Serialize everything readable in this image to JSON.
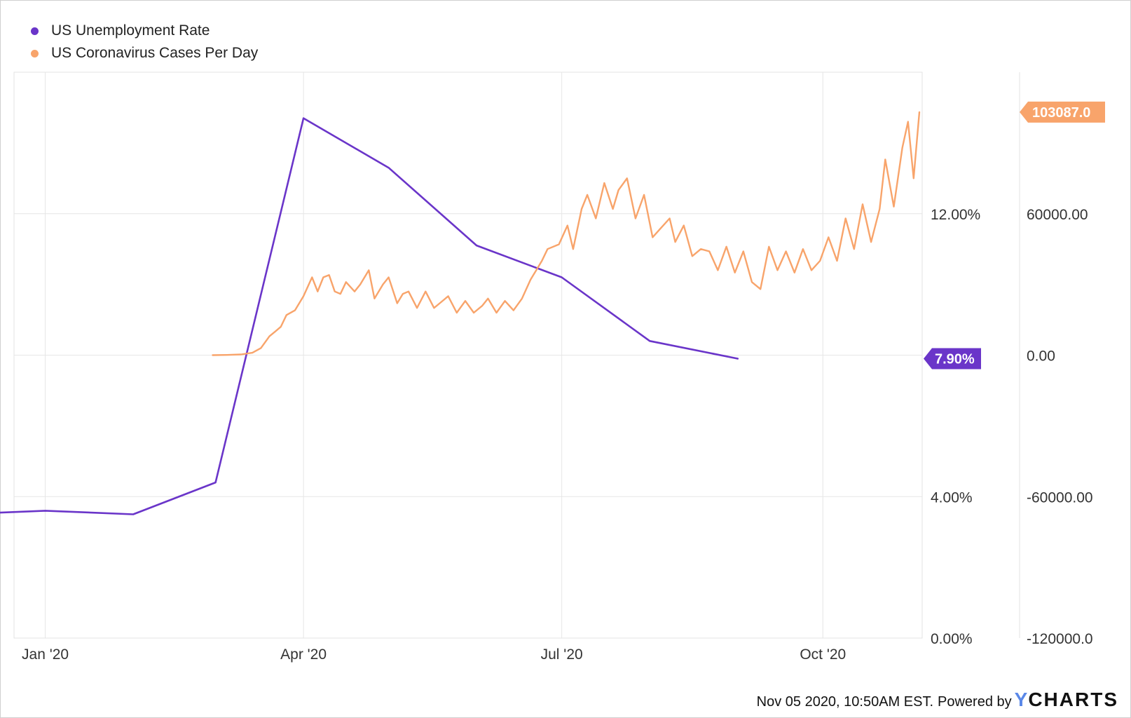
{
  "legend": [
    {
      "label": "US Unemployment Rate",
      "color": "#6a35c9"
    },
    {
      "label": "US Coronavirus Cases Per Day",
      "color": "#f8a46b"
    }
  ],
  "footer": {
    "timestamp": "Nov 05 2020, 10:50AM EST.",
    "powered_by": "Powered by",
    "brand_y": "Y",
    "brand_rest": "CHARTS"
  },
  "chart_data": {
    "type": "line",
    "x_range": [
      "2019-12-21",
      "2020-11-05"
    ],
    "x_ticks": [
      {
        "date": "2020-01-01",
        "label": "Jan '20"
      },
      {
        "date": "2020-04-01",
        "label": "Apr '20"
      },
      {
        "date": "2020-07-01",
        "label": "Jul '20"
      },
      {
        "date": "2020-10-01",
        "label": "Oct '20"
      }
    ],
    "left_axis": {
      "range": [
        0,
        16.0
      ],
      "ticks": [
        0,
        4,
        8,
        12
      ],
      "tick_labels": [
        "0.00%",
        "4.00%",
        "8.00%",
        "12.00%"
      ]
    },
    "right_axis": {
      "range": [
        -120000,
        120000
      ],
      "ticks": [
        -120000,
        -60000,
        0,
        60000
      ],
      "tick_labels": [
        "-120000.0",
        "-60000.00",
        "0.00",
        "60000.00"
      ]
    },
    "grid": true,
    "series": [
      {
        "name": "US Unemployment Rate",
        "axis": "left",
        "color": "#6a35c9",
        "last_value_label": "7.90%",
        "points": [
          [
            "2019-12-01",
            3.5
          ],
          [
            "2020-01-01",
            3.6
          ],
          [
            "2020-02-01",
            3.5
          ],
          [
            "2020-03-01",
            4.4
          ],
          [
            "2020-04-01",
            14.7
          ],
          [
            "2020-05-01",
            13.3
          ],
          [
            "2020-06-01",
            11.1
          ],
          [
            "2020-07-01",
            10.2
          ],
          [
            "2020-08-01",
            8.4
          ],
          [
            "2020-09-01",
            7.9
          ]
        ]
      },
      {
        "name": "US Coronavirus Cases Per Day",
        "axis": "right",
        "color": "#f8a46b",
        "last_value_label": "103087.0",
        "points": [
          [
            "2020-02-29",
            0
          ],
          [
            "2020-03-05",
            100
          ],
          [
            "2020-03-10",
            300
          ],
          [
            "2020-03-14",
            1000
          ],
          [
            "2020-03-17",
            3000
          ],
          [
            "2020-03-20",
            8000
          ],
          [
            "2020-03-22",
            10000
          ],
          [
            "2020-03-24",
            12000
          ],
          [
            "2020-03-26",
            17000
          ],
          [
            "2020-03-29",
            19000
          ],
          [
            "2020-04-01",
            25000
          ],
          [
            "2020-04-04",
            33000
          ],
          [
            "2020-04-06",
            27000
          ],
          [
            "2020-04-08",
            33000
          ],
          [
            "2020-04-10",
            34000
          ],
          [
            "2020-04-12",
            27000
          ],
          [
            "2020-04-14",
            26000
          ],
          [
            "2020-04-16",
            31000
          ],
          [
            "2020-04-19",
            27000
          ],
          [
            "2020-04-21",
            30000
          ],
          [
            "2020-04-24",
            36000
          ],
          [
            "2020-04-26",
            24000
          ],
          [
            "2020-04-29",
            30000
          ],
          [
            "2020-05-01",
            33000
          ],
          [
            "2020-05-04",
            22000
          ],
          [
            "2020-05-06",
            26000
          ],
          [
            "2020-05-08",
            27000
          ],
          [
            "2020-05-11",
            20000
          ],
          [
            "2020-05-14",
            27000
          ],
          [
            "2020-05-17",
            20000
          ],
          [
            "2020-05-19",
            22000
          ],
          [
            "2020-05-22",
            25000
          ],
          [
            "2020-05-25",
            18000
          ],
          [
            "2020-05-28",
            23000
          ],
          [
            "2020-05-31",
            18000
          ],
          [
            "2020-06-03",
            21000
          ],
          [
            "2020-06-05",
            24000
          ],
          [
            "2020-06-08",
            18000
          ],
          [
            "2020-06-11",
            23000
          ],
          [
            "2020-06-14",
            19000
          ],
          [
            "2020-06-17",
            24000
          ],
          [
            "2020-06-20",
            32000
          ],
          [
            "2020-06-24",
            40000
          ],
          [
            "2020-06-26",
            45000
          ],
          [
            "2020-06-30",
            47000
          ],
          [
            "2020-07-03",
            55000
          ],
          [
            "2020-07-05",
            45000
          ],
          [
            "2020-07-08",
            62000
          ],
          [
            "2020-07-10",
            68000
          ],
          [
            "2020-07-13",
            58000
          ],
          [
            "2020-07-16",
            73000
          ],
          [
            "2020-07-19",
            62000
          ],
          [
            "2020-07-21",
            70000
          ],
          [
            "2020-07-24",
            75000
          ],
          [
            "2020-07-27",
            58000
          ],
          [
            "2020-07-30",
            68000
          ],
          [
            "2020-08-02",
            50000
          ],
          [
            "2020-08-05",
            54000
          ],
          [
            "2020-08-08",
            58000
          ],
          [
            "2020-08-10",
            48000
          ],
          [
            "2020-08-13",
            55000
          ],
          [
            "2020-08-16",
            42000
          ],
          [
            "2020-08-19",
            45000
          ],
          [
            "2020-08-22",
            44000
          ],
          [
            "2020-08-25",
            36000
          ],
          [
            "2020-08-28",
            46000
          ],
          [
            "2020-08-31",
            35000
          ],
          [
            "2020-09-03",
            44000
          ],
          [
            "2020-09-06",
            31000
          ],
          [
            "2020-09-09",
            28000
          ],
          [
            "2020-09-12",
            46000
          ],
          [
            "2020-09-15",
            36000
          ],
          [
            "2020-09-18",
            44000
          ],
          [
            "2020-09-21",
            35000
          ],
          [
            "2020-09-24",
            45000
          ],
          [
            "2020-09-27",
            36000
          ],
          [
            "2020-09-30",
            40000
          ],
          [
            "2020-10-03",
            50000
          ],
          [
            "2020-10-06",
            40000
          ],
          [
            "2020-10-09",
            58000
          ],
          [
            "2020-10-12",
            45000
          ],
          [
            "2020-10-15",
            64000
          ],
          [
            "2020-10-18",
            48000
          ],
          [
            "2020-10-21",
            62000
          ],
          [
            "2020-10-23",
            83000
          ],
          [
            "2020-10-26",
            63000
          ],
          [
            "2020-10-29",
            88000
          ],
          [
            "2020-10-31",
            99000
          ],
          [
            "2020-11-02",
            75000
          ],
          [
            "2020-11-04",
            103087
          ]
        ]
      }
    ]
  }
}
